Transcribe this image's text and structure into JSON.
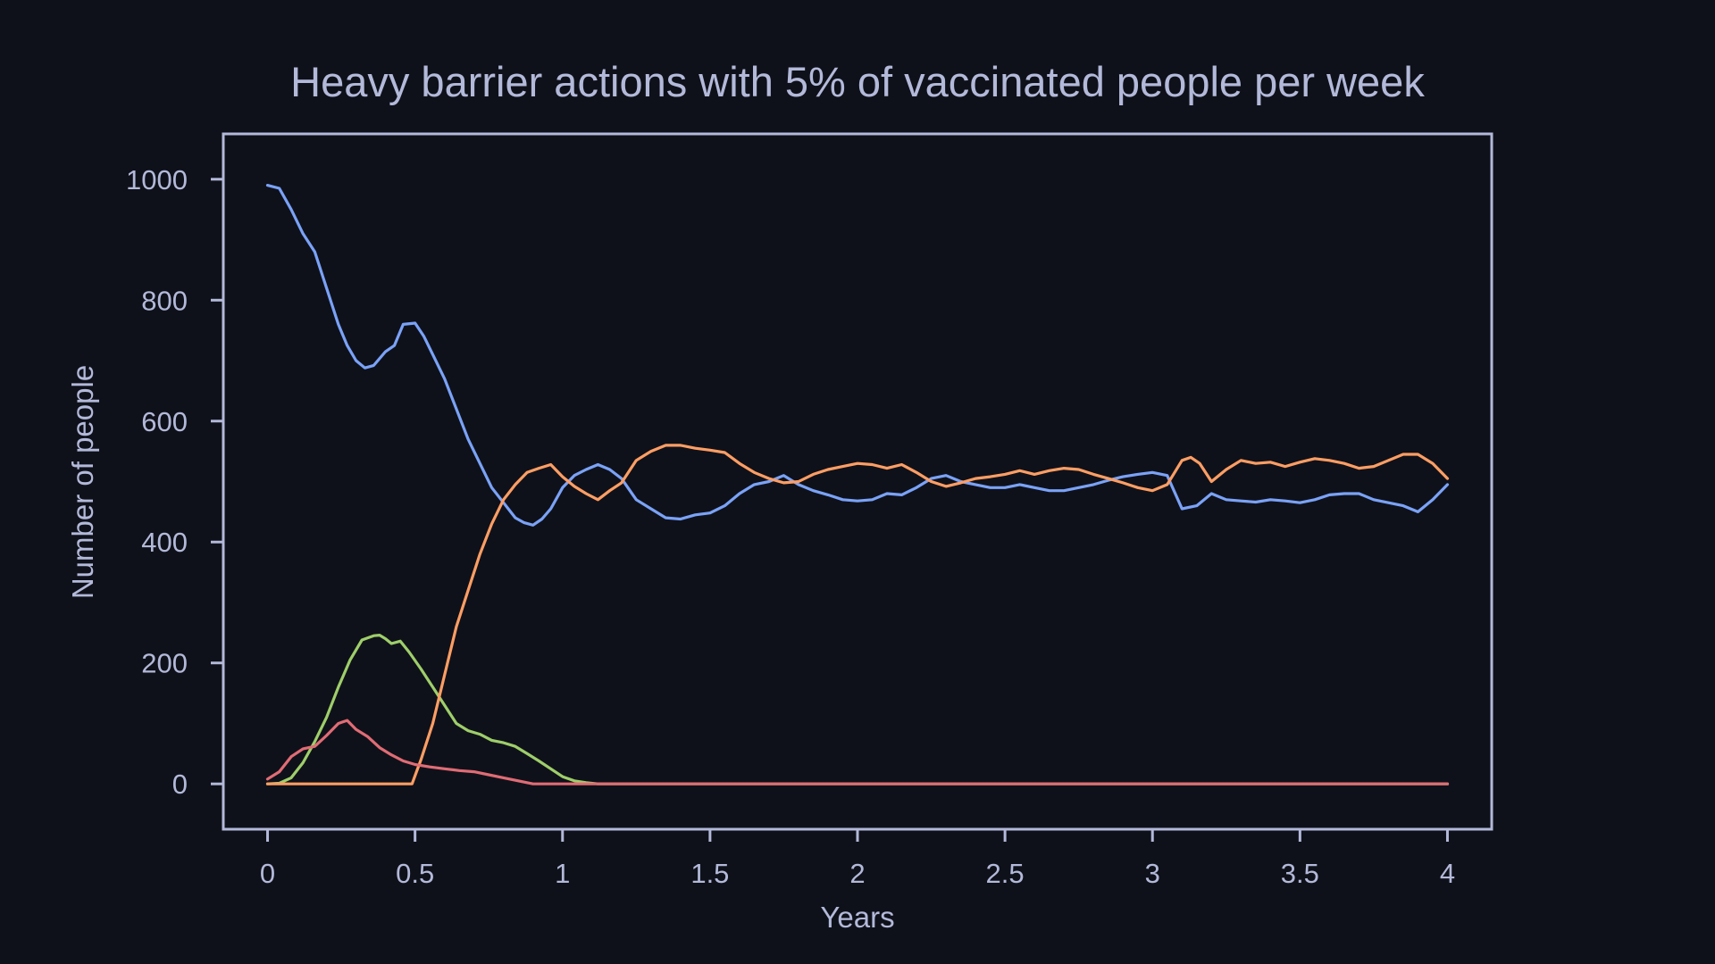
{
  "chart_data": {
    "type": "line",
    "title": "Heavy barrier actions with 5% of vaccinated people per week",
    "xlabel": "Years",
    "ylabel": "Number of people",
    "xlim": [
      -0.15,
      4.15
    ],
    "ylim": [
      -75,
      1075
    ],
    "xticks": [
      0,
      0.5,
      1,
      1.5,
      2,
      2.5,
      3,
      3.5,
      4
    ],
    "xtick_labels": [
      "0",
      "0.5",
      "1",
      "1.5",
      "2",
      "2.5",
      "3",
      "3.5",
      "4"
    ],
    "yticks": [
      0,
      200,
      400,
      600,
      800,
      1000
    ],
    "ytick_labels": [
      "0",
      "200",
      "400",
      "600",
      "800",
      "1000"
    ],
    "grid": false,
    "legend": "none",
    "series": [
      {
        "color": "#7aa2f7",
        "x": [
          0,
          0.04,
          0.08,
          0.12,
          0.16,
          0.2,
          0.24,
          0.27,
          0.3,
          0.33,
          0.36,
          0.4,
          0.43,
          0.46,
          0.5,
          0.53,
          0.56,
          0.6,
          0.64,
          0.68,
          0.72,
          0.76,
          0.8,
          0.84,
          0.87,
          0.9,
          0.93,
          0.96,
          1.0,
          1.04,
          1.08,
          1.12,
          1.16,
          1.2,
          1.25,
          1.3,
          1.35,
          1.4,
          1.45,
          1.5,
          1.55,
          1.6,
          1.65,
          1.7,
          1.75,
          1.8,
          1.85,
          1.9,
          1.95,
          2.0,
          2.05,
          2.1,
          2.15,
          2.2,
          2.25,
          2.3,
          2.35,
          2.4,
          2.45,
          2.5,
          2.55,
          2.6,
          2.65,
          2.7,
          2.75,
          2.8,
          2.85,
          2.9,
          2.95,
          3.0,
          3.05,
          3.1,
          3.15,
          3.2,
          3.25,
          3.3,
          3.35,
          3.4,
          3.45,
          3.5,
          3.55,
          3.6,
          3.65,
          3.7,
          3.75,
          3.8,
          3.85,
          3.9,
          3.95,
          4.0
        ],
        "y": [
          990,
          985,
          950,
          910,
          880,
          820,
          760,
          725,
          700,
          688,
          692,
          715,
          725,
          760,
          762,
          740,
          710,
          670,
          620,
          570,
          530,
          490,
          465,
          440,
          432,
          428,
          438,
          455,
          490,
          510,
          520,
          528,
          520,
          505,
          470,
          455,
          440,
          438,
          445,
          448,
          460,
          480,
          495,
          500,
          510,
          495,
          485,
          478,
          470,
          468,
          470,
          480,
          478,
          490,
          505,
          510,
          500,
          495,
          490,
          490,
          495,
          490,
          485,
          485,
          490,
          495,
          502,
          508,
          512,
          515,
          510,
          455,
          460,
          480,
          470,
          468,
          466,
          470,
          468,
          465,
          470,
          478,
          480,
          480,
          470,
          465,
          460,
          450,
          470,
          495
        ]
      },
      {
        "color": "#9ece6a",
        "x": [
          0,
          0.04,
          0.08,
          0.12,
          0.16,
          0.2,
          0.24,
          0.28,
          0.32,
          0.36,
          0.38,
          0.4,
          0.42,
          0.45,
          0.48,
          0.52,
          0.56,
          0.6,
          0.64,
          0.68,
          0.72,
          0.76,
          0.8,
          0.84,
          0.88,
          0.92,
          0.96,
          1.0,
          1.04,
          1.08,
          1.12,
          4.0
        ],
        "y": [
          0,
          1,
          10,
          35,
          70,
          110,
          160,
          205,
          238,
          245,
          246,
          240,
          232,
          236,
          218,
          190,
          160,
          130,
          100,
          88,
          82,
          72,
          68,
          62,
          50,
          38,
          25,
          12,
          5,
          2,
          0,
          0
        ]
      },
      {
        "color": "#ff9e64",
        "x": [
          0,
          0.1,
          0.2,
          0.3,
          0.4,
          0.49,
          0.52,
          0.56,
          0.6,
          0.64,
          0.68,
          0.72,
          0.76,
          0.8,
          0.84,
          0.88,
          0.92,
          0.96,
          1.0,
          1.04,
          1.08,
          1.12,
          1.16,
          1.2,
          1.25,
          1.3,
          1.35,
          1.4,
          1.45,
          1.5,
          1.55,
          1.6,
          1.65,
          1.7,
          1.75,
          1.8,
          1.85,
          1.9,
          1.95,
          2.0,
          2.05,
          2.1,
          2.15,
          2.2,
          2.25,
          2.3,
          2.35,
          2.4,
          2.45,
          2.5,
          2.55,
          2.6,
          2.65,
          2.7,
          2.75,
          2.8,
          2.85,
          2.9,
          2.95,
          3.0,
          3.05,
          3.1,
          3.13,
          3.16,
          3.2,
          3.25,
          3.3,
          3.35,
          3.4,
          3.45,
          3.5,
          3.55,
          3.6,
          3.65,
          3.7,
          3.75,
          3.8,
          3.85,
          3.9,
          3.95,
          4.0
        ],
        "y": [
          0,
          0,
          0,
          0,
          0,
          0,
          40,
          100,
          180,
          260,
          320,
          380,
          430,
          470,
          495,
          515,
          522,
          528,
          508,
          492,
          480,
          470,
          485,
          498,
          535,
          550,
          560,
          560,
          555,
          552,
          548,
          530,
          515,
          505,
          498,
          500,
          512,
          520,
          525,
          530,
          528,
          522,
          528,
          515,
          500,
          492,
          498,
          505,
          508,
          512,
          518,
          512,
          518,
          522,
          520,
          512,
          505,
          498,
          490,
          485,
          495,
          535,
          540,
          530,
          500,
          520,
          535,
          530,
          532,
          525,
          532,
          538,
          535,
          530,
          522,
          525,
          535,
          545,
          545,
          530,
          505
        ]
      },
      {
        "color": "#e06c75",
        "x": [
          0,
          0.04,
          0.08,
          0.12,
          0.16,
          0.2,
          0.24,
          0.27,
          0.3,
          0.34,
          0.38,
          0.42,
          0.46,
          0.5,
          0.55,
          0.6,
          0.65,
          0.7,
          0.75,
          0.8,
          0.85,
          0.9,
          0.95,
          4.0
        ],
        "y": [
          8,
          20,
          45,
          58,
          62,
          80,
          100,
          105,
          90,
          78,
          60,
          48,
          38,
          32,
          28,
          25,
          22,
          20,
          15,
          10,
          5,
          0,
          0,
          0
        ]
      }
    ]
  }
}
